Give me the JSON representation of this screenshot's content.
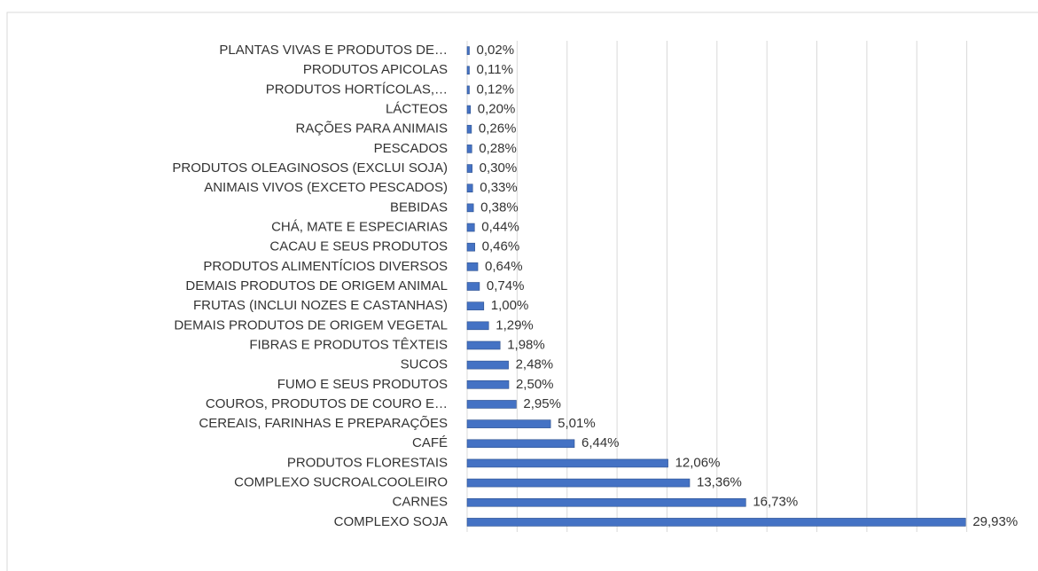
{
  "chart_data": {
    "type": "hbar",
    "orientation": "horizontal",
    "categories": [
      "PLANTAS VIVAS E PRODUTOS DE…",
      "PRODUTOS APICOLAS",
      "PRODUTOS HORTÍCOLAS,…",
      "LÁCTEOS",
      "RAÇÕES PARA ANIMAIS",
      "PESCADOS",
      "PRODUTOS OLEAGINOSOS (EXCLUI SOJA)",
      "ANIMAIS VIVOS (EXCETO PESCADOS)",
      "BEBIDAS",
      "CHÁ, MATE E ESPECIARIAS",
      "CACAU E SEUS PRODUTOS",
      "PRODUTOS ALIMENTÍCIOS DIVERSOS",
      "DEMAIS PRODUTOS DE ORIGEM ANIMAL",
      "FRUTAS (INCLUI NOZES E CASTANHAS)",
      "DEMAIS PRODUTOS DE ORIGEM VEGETAL",
      "FIBRAS E PRODUTOS TÊXTEIS",
      "SUCOS",
      "FUMO E SEUS PRODUTOS",
      "COUROS, PRODUTOS DE COURO E…",
      "CEREAIS, FARINHAS E PREPARAÇÕES",
      "CAFÉ",
      "PRODUTOS FLORESTAIS",
      "COMPLEXO SUCROALCOOLEIRO",
      "CARNES",
      "COMPLEXO SOJA"
    ],
    "values": [
      0.02,
      0.11,
      0.12,
      0.2,
      0.26,
      0.28,
      0.3,
      0.33,
      0.38,
      0.44,
      0.46,
      0.64,
      0.74,
      1.0,
      1.29,
      1.98,
      2.48,
      2.5,
      2.95,
      5.01,
      6.44,
      12.06,
      13.36,
      16.73,
      29.93
    ],
    "value_labels": [
      "0,02%",
      "0,11%",
      "0,12%",
      "0,20%",
      "0,26%",
      "0,28%",
      "0,30%",
      "0,33%",
      "0,38%",
      "0,44%",
      "0,46%",
      "0,64%",
      "0,74%",
      "1,00%",
      "1,29%",
      "1,98%",
      "2,48%",
      "2,50%",
      "2,95%",
      "5,01%",
      "6,44%",
      "12,06%",
      "13,36%",
      "16,73%",
      "29,93%"
    ],
    "color": "#4472c4",
    "xlim": [
      0,
      33
    ],
    "xticks": [
      0,
      3,
      6,
      9,
      12,
      15,
      18,
      21,
      24,
      27,
      30
    ],
    "grid": true
  }
}
